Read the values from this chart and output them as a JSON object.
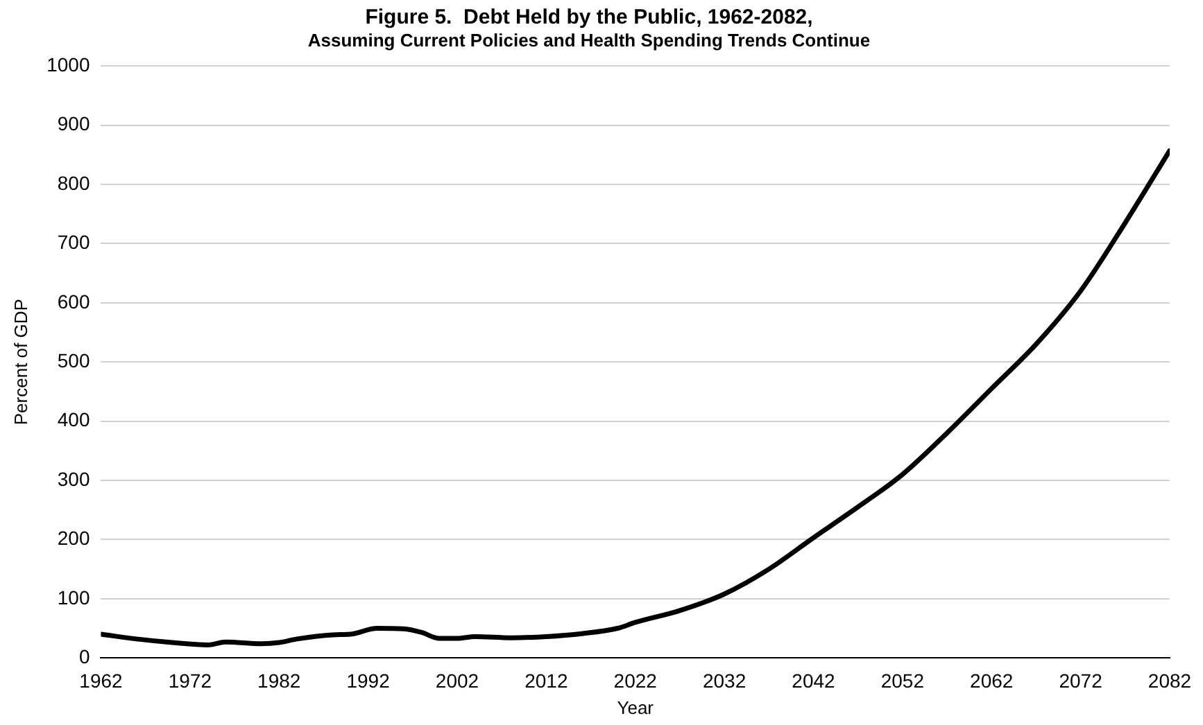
{
  "chart_data": {
    "type": "line",
    "title": "Figure 5.  Debt Held by the Public, 1962-2082,",
    "subtitle": "Assuming Current Policies and Health Spending Trends Continue",
    "xlabel": "Year",
    "ylabel": "Percent of GDP",
    "x": [
      1962,
      1966,
      1970,
      1974,
      1976,
      1980,
      1982,
      1984,
      1988,
      1990,
      1993,
      1996,
      1998,
      2000,
      2002,
      2004,
      2008,
      2012,
      2016,
      2020,
      2022,
      2027,
      2032,
      2037,
      2042,
      2047,
      2052,
      2057,
      2062,
      2067,
      2072,
      2077,
      2082
    ],
    "series": [
      {
        "color": "#000000",
        "values": [
          40,
          32,
          26,
          22,
          27,
          24,
          26,
          32,
          39,
          40,
          50,
          49,
          43,
          33,
          33,
          36,
          34,
          36,
          41,
          50,
          60,
          80,
          108,
          150,
          203,
          255,
          310,
          380,
          455,
          530,
          620,
          735,
          857
        ]
      }
    ],
    "xlim": [
      1962,
      2082
    ],
    "xticks": [
      1962,
      1972,
      1982,
      1992,
      2002,
      2012,
      2022,
      2032,
      2042,
      2052,
      2062,
      2072,
      2082
    ],
    "ylim": [
      0,
      1000
    ],
    "yticks": [
      0,
      100,
      200,
      300,
      400,
      500,
      600,
      700,
      800,
      900,
      1000
    ],
    "grid": "y",
    "legend": false,
    "marker": "none",
    "line_style": "solid"
  }
}
